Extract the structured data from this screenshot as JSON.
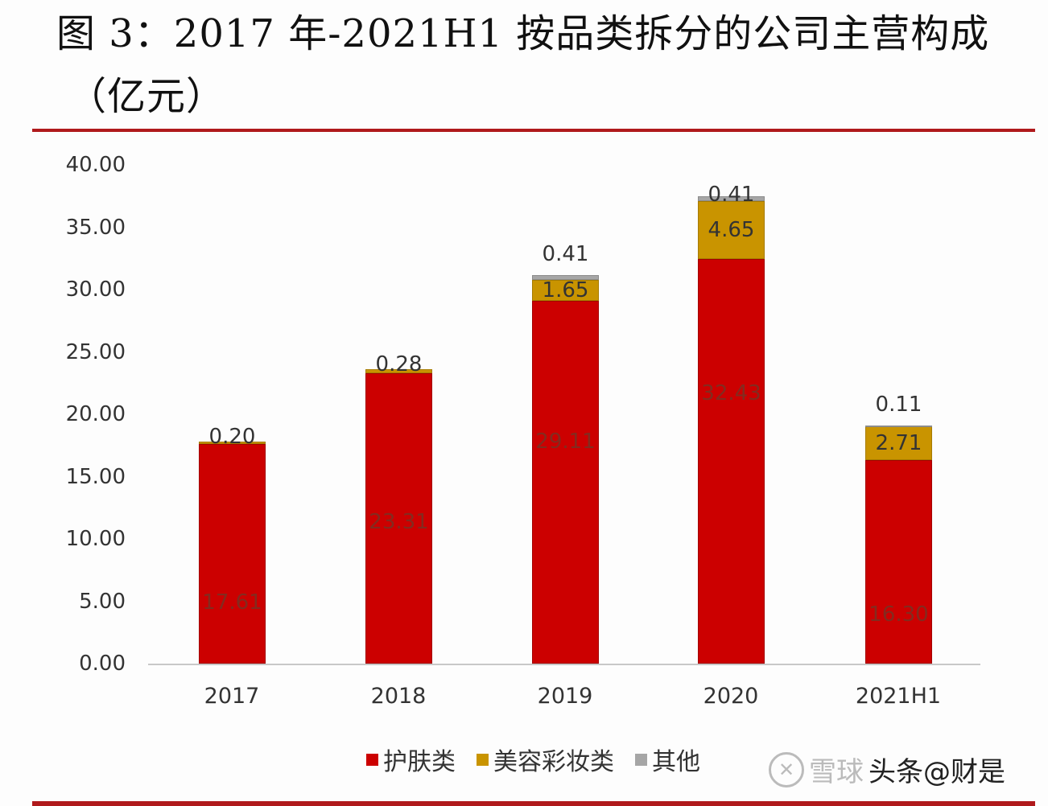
{
  "title": {
    "line1": "图 3：2017 年-2021H1 按品类拆分的公司主营构成",
    "line2": "（亿元）"
  },
  "colors": {
    "skincare": "#cc0000",
    "makeup": "#c99400",
    "other": "#a6a6a6",
    "rule": "#b01a1c"
  },
  "yaxis": {
    "ticks": [
      "40.00",
      "35.00",
      "30.00",
      "25.00",
      "20.00",
      "15.00",
      "10.00",
      "5.00",
      "0.00"
    ]
  },
  "xaxis": {
    "ticks": [
      "2017",
      "2018",
      "2019",
      "2020",
      "2021H1"
    ]
  },
  "legend": {
    "items": [
      {
        "label": "护肤类",
        "color": "#cc0000"
      },
      {
        "label": "美容彩妆类",
        "color": "#c99400"
      },
      {
        "label": "其他",
        "color": "#a6a6a6"
      }
    ]
  },
  "bars": [
    {
      "year": "2017",
      "skincare": "17.61",
      "makeup": "0.20",
      "other": ""
    },
    {
      "year": "2018",
      "skincare": "23.31",
      "makeup": "0.28",
      "other": ""
    },
    {
      "year": "2019",
      "skincare": "29.11",
      "makeup": "1.65",
      "other": "0.41"
    },
    {
      "year": "2020",
      "skincare": "32.43",
      "makeup": "4.65",
      "other": "0.41"
    },
    {
      "year": "2021H1",
      "skincare": "16.30",
      "makeup": "2.71",
      "other": "0.11"
    }
  ],
  "watermark": {
    "text1": "雪球",
    "text2": "头条@财是"
  },
  "chart_data": {
    "type": "bar",
    "stacked": true,
    "title": "图 3：2017 年-2021H1 按品类拆分的公司主营构成（亿元）",
    "xlabel": "",
    "ylabel": "亿元",
    "ylim": [
      0,
      40
    ],
    "yticks": [
      0,
      5,
      10,
      15,
      20,
      25,
      30,
      35,
      40
    ],
    "grid": false,
    "legend_position": "bottom",
    "categories": [
      "2017",
      "2018",
      "2019",
      "2020",
      "2021H1"
    ],
    "series": [
      {
        "name": "护肤类",
        "color": "#cc0000",
        "values": [
          17.61,
          23.31,
          29.11,
          32.43,
          16.3
        ]
      },
      {
        "name": "美容彩妆类",
        "color": "#c99400",
        "values": [
          0.2,
          0.28,
          1.65,
          4.65,
          2.71
        ]
      },
      {
        "name": "其他",
        "color": "#a6a6a6",
        "values": [
          0.0,
          0.0,
          0.41,
          0.41,
          0.11
        ]
      }
    ]
  }
}
